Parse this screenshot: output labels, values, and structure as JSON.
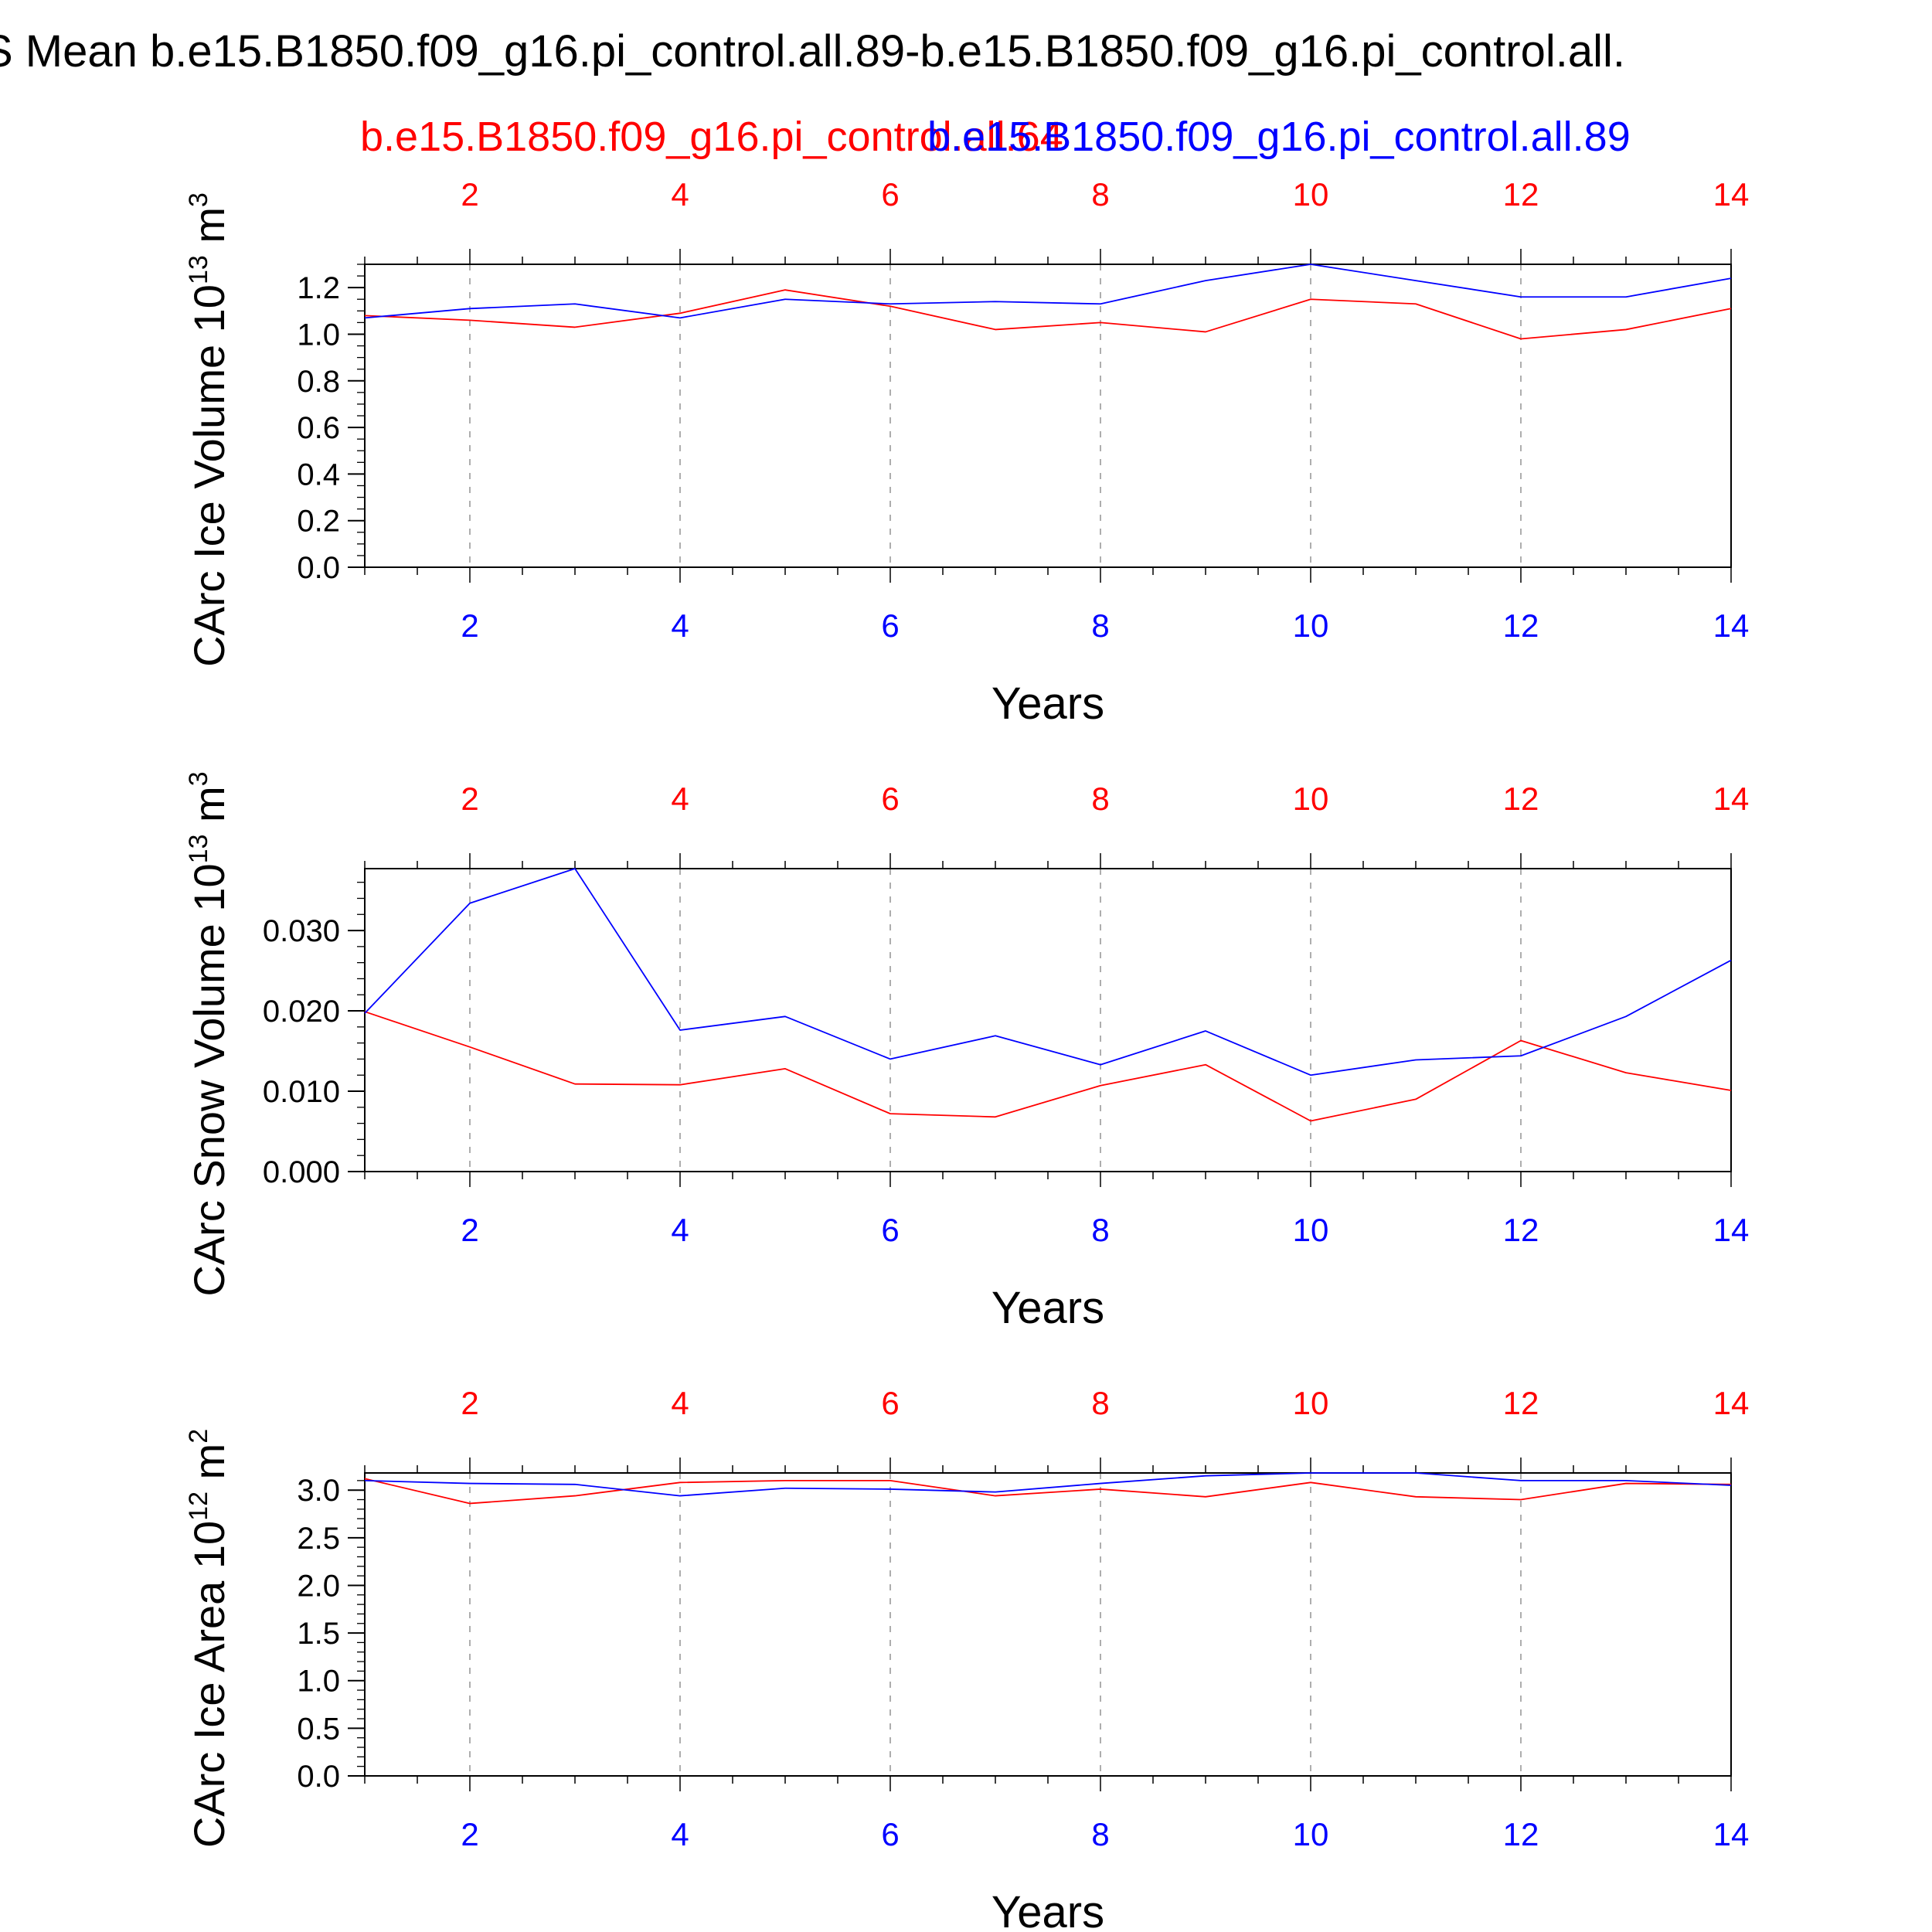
{
  "page_title": "S Mean b.e15.B1850.f09_g16.pi_control.all.89-b.e15.B1850.f09_g16.pi_control.all.",
  "legend": {
    "red_case": "b.e15.B1850.f09_g16.pi_control.all.64",
    "blue_case": "b.e15.B1850.f09_g16.pi_control.all.89"
  },
  "colors": {
    "red": "#ff0000",
    "blue": "#0000ff",
    "axis": "#000000",
    "grid": "#999999"
  },
  "chart_data": [
    {
      "type": "line",
      "ylabel": "CArc Ice Volume 10",
      "ylabel_exp": "13",
      "ylabel_unit": " m",
      "ylabel_unit_exp": "3",
      "xlabel": "Years",
      "xlim": [
        1,
        14
      ],
      "ylim": [
        0,
        1.3
      ],
      "yticks": [
        0.0,
        0.2,
        0.4,
        0.6,
        0.8,
        1.0,
        1.2
      ],
      "ytick_labels": [
        "0.0",
        "0.2",
        "0.4",
        "0.6",
        "0.8",
        "1.0",
        "1.2"
      ],
      "yminor_step": 0.05,
      "xticks": [
        2,
        4,
        6,
        8,
        10,
        12,
        14
      ],
      "xtick_labels": [
        "2",
        "4",
        "6",
        "8",
        "10",
        "12",
        "14"
      ],
      "x": [
        1,
        2,
        3,
        4,
        5,
        6,
        7,
        8,
        9,
        10,
        11,
        12,
        13,
        14
      ],
      "series": [
        {
          "name": "b.e15.B1850.f09_g16.pi_control.all.64",
          "color": "red",
          "values": [
            1.08,
            1.06,
            1.03,
            1.09,
            1.19,
            1.12,
            1.02,
            1.05,
            1.01,
            1.15,
            1.13,
            0.98,
            1.02,
            1.11
          ]
        },
        {
          "name": "b.e15.B1850.f09_g16.pi_control.all.89",
          "color": "blue",
          "values": [
            1.07,
            1.11,
            1.13,
            1.07,
            1.15,
            1.13,
            1.14,
            1.13,
            1.23,
            1.3,
            1.23,
            1.16,
            1.16,
            1.24
          ]
        }
      ]
    },
    {
      "type": "line",
      "ylabel": "CArc Snow Volume 10",
      "ylabel_exp": "13",
      "ylabel_unit": " m",
      "ylabel_unit_exp": "3",
      "xlabel": "Years",
      "xlim": [
        1,
        14
      ],
      "ylim": [
        0,
        0.0377
      ],
      "yticks": [
        0.0,
        0.01,
        0.02,
        0.03
      ],
      "ytick_labels": [
        "0.000",
        "0.010",
        "0.020",
        "0.030"
      ],
      "yminor_step": 0.002,
      "xticks": [
        2,
        4,
        6,
        8,
        10,
        12,
        14
      ],
      "xtick_labels": [
        "2",
        "4",
        "6",
        "8",
        "10",
        "12",
        "14"
      ],
      "x": [
        1,
        2,
        3,
        4,
        5,
        6,
        7,
        8,
        9,
        10,
        11,
        12,
        13,
        14
      ],
      "series": [
        {
          "name": "b.e15.B1850.f09_g16.pi_control.all.64",
          "color": "red",
          "values": [
            0.0199,
            0.0155,
            0.0109,
            0.0108,
            0.0128,
            0.0072,
            0.0068,
            0.0107,
            0.0133,
            0.0063,
            0.009,
            0.0163,
            0.0123,
            0.0101
          ]
        },
        {
          "name": "b.e15.B1850.f09_g16.pi_control.all.89",
          "color": "blue",
          "values": [
            0.0197,
            0.0334,
            0.0377,
            0.0176,
            0.0193,
            0.014,
            0.0169,
            0.0133,
            0.0175,
            0.012,
            0.0139,
            0.0144,
            0.0193,
            0.0263
          ]
        }
      ]
    },
    {
      "type": "line",
      "ylabel": "CArc Ice Area 10",
      "ylabel_exp": "12",
      "ylabel_unit": " m",
      "ylabel_unit_exp": "2",
      "xlabel": "Years",
      "xlim": [
        1,
        14
      ],
      "ylim": [
        0,
        3.18
      ],
      "yticks": [
        0.0,
        0.5,
        1.0,
        1.5,
        2.0,
        2.5,
        3.0
      ],
      "ytick_labels": [
        "0.0",
        "0.5",
        "1.0",
        "1.5",
        "2.0",
        "2.5",
        "3.0"
      ],
      "yminor_step": 0.1,
      "xticks": [
        2,
        4,
        6,
        8,
        10,
        12,
        14
      ],
      "xtick_labels": [
        "2",
        "4",
        "6",
        "8",
        "10",
        "12",
        "14"
      ],
      "x": [
        1,
        2,
        3,
        4,
        5,
        6,
        7,
        8,
        9,
        10,
        11,
        12,
        13,
        14
      ],
      "series": [
        {
          "name": "b.e15.B1850.f09_g16.pi_control.all.64",
          "color": "red",
          "values": [
            3.12,
            2.86,
            2.94,
            3.08,
            3.1,
            3.1,
            2.94,
            3.01,
            2.93,
            3.08,
            2.93,
            2.9,
            3.07,
            3.06
          ]
        },
        {
          "name": "b.e15.B1850.f09_g16.pi_control.all.89",
          "color": "blue",
          "values": [
            3.1,
            3.07,
            3.06,
            2.94,
            3.02,
            3.01,
            2.98,
            3.07,
            3.15,
            3.18,
            3.18,
            3.1,
            3.1,
            3.05
          ]
        }
      ]
    }
  ]
}
